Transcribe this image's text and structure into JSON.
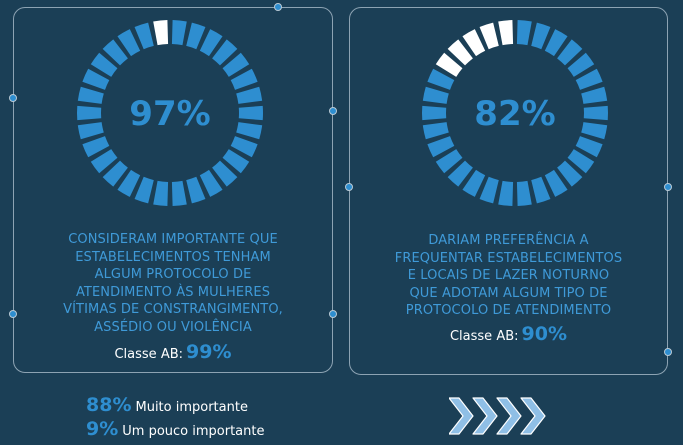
{
  "colors": {
    "accent": "#2e8ed0",
    "background": "#1b3f56",
    "remaining": "#ffffff"
  },
  "stat1": {
    "percent_label": "97%",
    "percent": 97,
    "description_lines": [
      "CONSIDERAM IMPORTANTE QUE",
      "ESTABELECIMENTOS TENHAM",
      "ALGUM PROTOCOLO DE",
      "ATENDIMENTO ÀS MULHERES",
      "VÍTIMAS DE CONSTRANGIMENTO,",
      "ASSÉDIO OU VIOLÊNCIA"
    ],
    "classe_label": "Classe AB:",
    "classe_value": "99%"
  },
  "stat2": {
    "percent_label": "82%",
    "percent": 82,
    "description_lines": [
      "DARIAM PREFERÊNCIA A",
      "FREQUENTAR ESTABELECIMENTOS",
      "E LOCAIS DE LAZER NOTURNO",
      "QUE ADOTAM ALGUM TIPO DE",
      "PROTOCOLO DE ATENDIMENTO"
    ],
    "classe_label": "Classe AB:",
    "classe_value": "90%"
  },
  "legend": [
    {
      "value": "88%",
      "label": "Muito importante"
    },
    {
      "value": "9%",
      "label": "Um pouco importante"
    }
  ],
  "decoration": {
    "chevrons_icon": "chevron-right-icon"
  }
}
